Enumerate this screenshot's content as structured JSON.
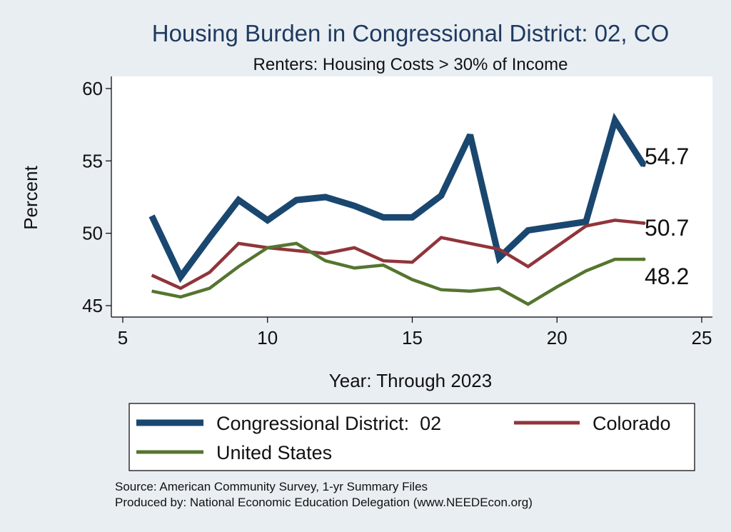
{
  "chart_data": {
    "type": "line",
    "title": "Housing Burden in Congressional District:  02, CO",
    "subtitle": "Renters: Housing Costs > 30% of Income",
    "xlabel": "Year: Through 2023",
    "ylabel": "Percent",
    "xlim": [
      5,
      25
    ],
    "ylim": [
      45,
      60
    ],
    "xticks": [
      5,
      10,
      15,
      20,
      25
    ],
    "yticks": [
      45,
      50,
      55,
      60
    ],
    "grid": true,
    "series": [
      {
        "name": "Congressional District:  02",
        "color": "#1a476f",
        "x": [
          6,
          7,
          8,
          9,
          10,
          11,
          12,
          13,
          14,
          15,
          16,
          17,
          18,
          19,
          20,
          21,
          22,
          23
        ],
        "values": [
          51.2,
          47.0,
          49.7,
          52.3,
          50.9,
          52.3,
          52.5,
          51.9,
          51.1,
          51.1,
          52.6,
          56.8,
          48.3,
          50.2,
          50.5,
          50.8,
          57.8,
          54.7
        ],
        "end_label": "54.7"
      },
      {
        "name": "Colorado",
        "color": "#90353b",
        "x": [
          6,
          7,
          8,
          9,
          10,
          11,
          12,
          13,
          14,
          15,
          16,
          17,
          18,
          19,
          20,
          21,
          22,
          23
        ],
        "values": [
          47.1,
          46.2,
          47.3,
          49.3,
          49.0,
          48.8,
          48.6,
          49.0,
          48.1,
          48.0,
          49.7,
          49.3,
          48.9,
          47.7,
          49.1,
          50.5,
          50.9,
          50.7
        ],
        "end_label": "50.7"
      },
      {
        "name": "United States",
        "color": "#55752f",
        "x": [
          6,
          7,
          8,
          9,
          10,
          11,
          12,
          13,
          14,
          15,
          16,
          17,
          18,
          19,
          20,
          21,
          22,
          23
        ],
        "values": [
          46.0,
          45.6,
          46.2,
          47.7,
          49.0,
          49.3,
          48.1,
          47.6,
          47.8,
          46.8,
          46.1,
          46.0,
          46.2,
          45.1,
          46.3,
          47.4,
          48.2,
          48.2
        ],
        "end_label": "48.2"
      }
    ],
    "legend_position": "bottom"
  },
  "notes": {
    "source": "Source: American Community Survey, 1-yr Summary Files",
    "produced": "Produced by: National Economic Education Delegation (www.NEEDEcon.org)"
  }
}
